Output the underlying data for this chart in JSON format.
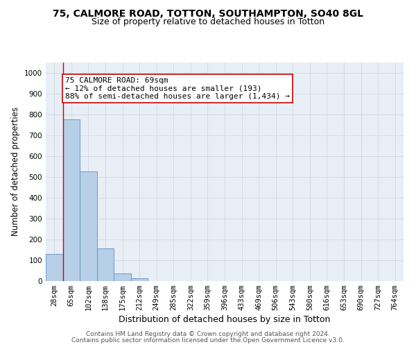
{
  "title1": "75, CALMORE ROAD, TOTTON, SOUTHAMPTON, SO40 8GL",
  "title2": "Size of property relative to detached houses in Totton",
  "xlabel": "Distribution of detached houses by size in Totton",
  "ylabel": "Number of detached properties",
  "bar_labels": [
    "28sqm",
    "65sqm",
    "102sqm",
    "138sqm",
    "175sqm",
    "212sqm",
    "249sqm",
    "285sqm",
    "322sqm",
    "359sqm",
    "396sqm",
    "433sqm",
    "469sqm",
    "506sqm",
    "543sqm",
    "580sqm",
    "616sqm",
    "653sqm",
    "690sqm",
    "727sqm",
    "764sqm"
  ],
  "bar_values": [
    130,
    775,
    525,
    158,
    38,
    12,
    0,
    0,
    0,
    0,
    0,
    0,
    0,
    0,
    0,
    0,
    0,
    0,
    0,
    0,
    0
  ],
  "bar_color": "#b8cfe8",
  "bar_edgecolor": "#5a8fc3",
  "grid_color": "#d0d8e4",
  "bg_color": "#e8eef5",
  "annotation_box_color": "#cc0000",
  "annotation_line1": "75 CALMORE ROAD: 69sqm",
  "annotation_line2": "← 12% of detached houses are smaller (193)",
  "annotation_line3": "88% of semi-detached houses are larger (1,434) →",
  "vline_bar_index": 1,
  "ylim": [
    0,
    1050
  ],
  "yticks": [
    0,
    100,
    200,
    300,
    400,
    500,
    600,
    700,
    800,
    900,
    1000
  ],
  "footer1": "Contains HM Land Registry data © Crown copyright and database right 2024.",
  "footer2": "Contains public sector information licensed under the Open Government Licence v3.0.",
  "title1_fontsize": 10,
  "title2_fontsize": 9,
  "axis_label_fontsize": 8.5,
  "tick_fontsize": 7.5,
  "annotation_fontsize": 8,
  "footer_fontsize": 6.5
}
